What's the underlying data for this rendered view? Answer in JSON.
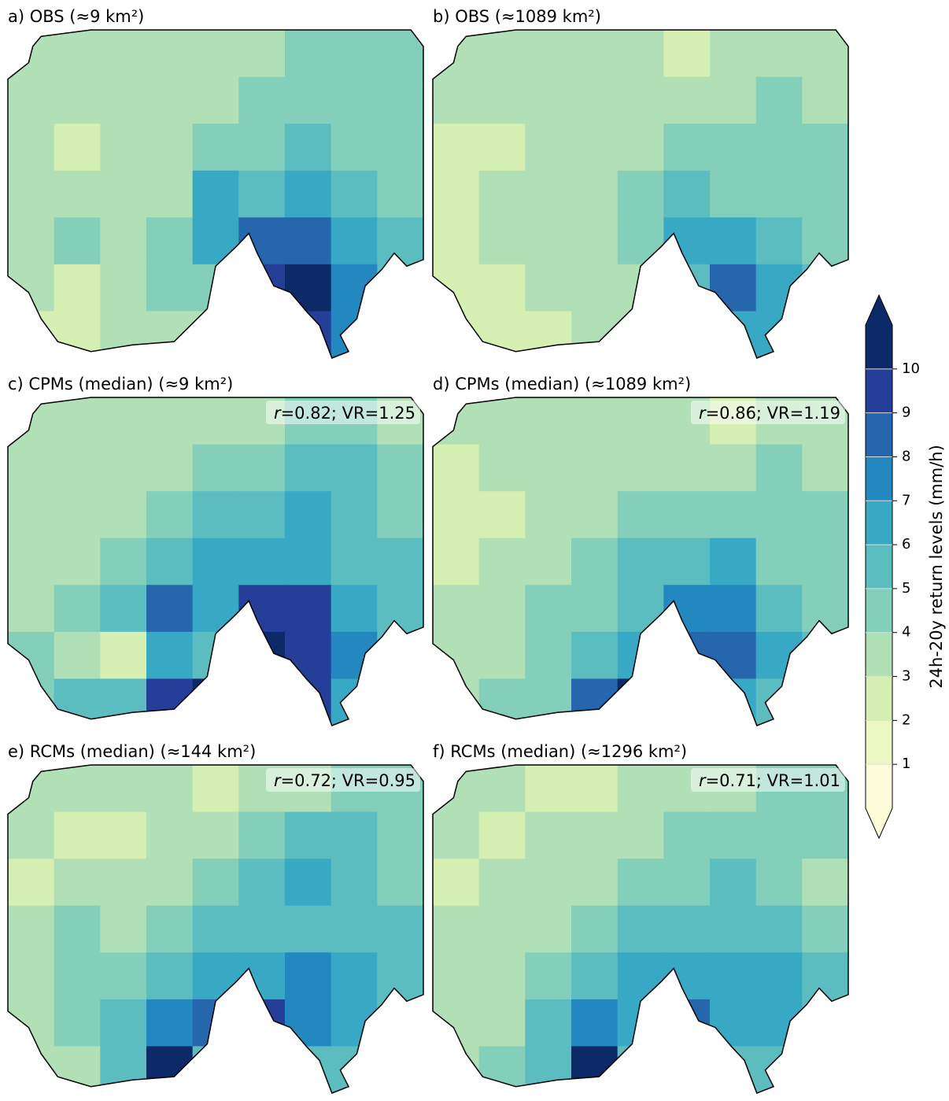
{
  "panels": [
    {
      "title": "a) OBS (≈9 km²)",
      "grid": [
        [
          3.5,
          3.5,
          3.5,
          3.5,
          3.5,
          3.5,
          4.5,
          4.5,
          4.5
        ],
        [
          3.5,
          3.5,
          3.5,
          3.5,
          3.5,
          4.5,
          4.5,
          4.5,
          4.5
        ],
        [
          3.5,
          2.5,
          3.5,
          3.5,
          4.5,
          4.5,
          5.5,
          4.5,
          4.5
        ],
        [
          3.5,
          3.5,
          3.5,
          3.5,
          6.5,
          5.5,
          6.5,
          5.5,
          4.5
        ],
        [
          3.5,
          4.5,
          3.5,
          4.5,
          6.5,
          8.5,
          8.5,
          6.5,
          5.5
        ],
        [
          3.5,
          2.5,
          3.5,
          4.5,
          4.5,
          9.5,
          10.5,
          7.5,
          5.5
        ],
        [
          2.5,
          2.5,
          3.5,
          3.5,
          3.5,
          4.5,
          9.5,
          7.5,
          5.5
        ]
      ]
    },
    {
      "title": "b) OBS (≈1089 km²)",
      "grid": [
        [
          3.5,
          3.5,
          3.5,
          3.5,
          3.5,
          2.5,
          3.5,
          3.5,
          3.5
        ],
        [
          3.5,
          3.5,
          3.5,
          3.5,
          3.5,
          3.5,
          3.5,
          4.5,
          3.5
        ],
        [
          2.5,
          2.5,
          3.5,
          3.5,
          3.5,
          4.5,
          4.5,
          4.5,
          4.5
        ],
        [
          2.5,
          3.5,
          3.5,
          3.5,
          4.5,
          5.5,
          4.5,
          4.5,
          4.5
        ],
        [
          2.5,
          3.5,
          3.5,
          3.5,
          4.5,
          6.5,
          6.5,
          5.5,
          4.5
        ],
        [
          2.5,
          2.5,
          3.5,
          3.5,
          3.5,
          5.5,
          8.5,
          6.5,
          5.5
        ],
        [
          2.5,
          2.5,
          2.5,
          3.5,
          3.5,
          4.5,
          6.5,
          6.5,
          5.5
        ]
      ]
    },
    {
      "title": "c) CPMs (median) (≈9 km²)",
      "stat_symbol": "r",
      "stat_text": "=0.82; VR=1.25",
      "grid": [
        [
          3.5,
          3.5,
          3.5,
          3.5,
          3.5,
          3.5,
          4.5,
          4.5,
          3.5
        ],
        [
          3.5,
          3.5,
          3.5,
          3.5,
          4.5,
          4.5,
          5.5,
          5.5,
          4.5
        ],
        [
          3.5,
          3.5,
          3.5,
          4.5,
          5.5,
          5.5,
          6.5,
          5.5,
          4.5
        ],
        [
          3.5,
          3.5,
          4.5,
          5.5,
          6.5,
          6.5,
          6.5,
          5.5,
          5.5
        ],
        [
          3.5,
          4.5,
          5.5,
          8.5,
          6.5,
          9.5,
          9.5,
          6.5,
          5.5
        ],
        [
          4.5,
          3.5,
          2.5,
          6.5,
          5.5,
          10.5,
          9.5,
          7.5,
          5.5
        ],
        [
          4.5,
          5.5,
          5.5,
          9.5,
          10.5,
          8.5,
          9.5,
          6.5,
          5.5
        ]
      ]
    },
    {
      "title": "d) CPMs (median) (≈1089 km²)",
      "stat_symbol": "r",
      "stat_text": "=0.86; VR=1.19",
      "grid": [
        [
          3.5,
          3.5,
          3.5,
          3.5,
          3.5,
          3.5,
          2.5,
          3.5,
          3.5
        ],
        [
          2.5,
          3.5,
          3.5,
          3.5,
          3.5,
          3.5,
          3.5,
          4.5,
          3.5
        ],
        [
          2.5,
          2.5,
          3.5,
          3.5,
          4.5,
          4.5,
          4.5,
          4.5,
          4.5
        ],
        [
          2.5,
          3.5,
          3.5,
          4.5,
          5.5,
          5.5,
          6.5,
          4.5,
          4.5
        ],
        [
          3.5,
          3.5,
          4.5,
          4.5,
          5.5,
          7.5,
          7.5,
          5.5,
          4.5
        ],
        [
          3.5,
          3.5,
          4.5,
          5.5,
          6.5,
          8.5,
          8.5,
          6.5,
          5.5
        ],
        [
          3.5,
          4.5,
          4.5,
          8.5,
          10.5,
          7.5,
          6.5,
          5.5,
          5.5
        ]
      ]
    },
    {
      "title": "e) RCMs (median) (≈144 km²)",
      "stat_symbol": "r",
      "stat_text": "=0.72; VR=0.95",
      "grid": [
        [
          3.5,
          3.5,
          3.5,
          3.5,
          2.5,
          3.5,
          3.5,
          4.5,
          4.5
        ],
        [
          3.5,
          2.5,
          2.5,
          3.5,
          3.5,
          4.5,
          5.5,
          5.5,
          4.5
        ],
        [
          2.5,
          3.5,
          3.5,
          3.5,
          4.5,
          5.5,
          6.5,
          5.5,
          4.5
        ],
        [
          3.5,
          4.5,
          3.5,
          4.5,
          5.5,
          5.5,
          5.5,
          5.5,
          5.5
        ],
        [
          3.5,
          4.5,
          4.5,
          5.5,
          6.5,
          6.5,
          7.5,
          6.5,
          5.5
        ],
        [
          3.5,
          4.5,
          5.5,
          7.5,
          8.5,
          9.5,
          7.5,
          6.5,
          5.5
        ],
        [
          3.5,
          3.5,
          5.5,
          10.5,
          5.5,
          5.5,
          5.5,
          5.5,
          5.5
        ]
      ]
    },
    {
      "title": "f) RCMs (median) (≈1296 km²)",
      "stat_symbol": "r",
      "stat_text": "=0.71; VR=1.01",
      "grid": [
        [
          3.5,
          3.5,
          2.5,
          2.5,
          3.5,
          3.5,
          3.5,
          4.5,
          4.5
        ],
        [
          3.5,
          2.5,
          3.5,
          3.5,
          3.5,
          4.5,
          4.5,
          4.5,
          4.5
        ],
        [
          2.5,
          3.5,
          3.5,
          3.5,
          4.5,
          4.5,
          5.5,
          4.5,
          3.5
        ],
        [
          3.5,
          3.5,
          3.5,
          4.5,
          5.5,
          5.5,
          5.5,
          5.5,
          4.5
        ],
        [
          3.5,
          3.5,
          4.5,
          5.5,
          6.5,
          6.5,
          6.5,
          6.5,
          5.5
        ],
        [
          3.5,
          3.5,
          5.5,
          7.5,
          6.5,
          8.5,
          6.5,
          6.5,
          5.5
        ],
        [
          3.5,
          4.5,
          5.5,
          10.5,
          5.5,
          5.5,
          5.5,
          5.5,
          5.5
        ]
      ]
    }
  ],
  "colorbar": {
    "label": "24h-20y return levels (mm/h)",
    "lim": [
      0,
      11
    ],
    "ticks": [
      1,
      2,
      3,
      4,
      5,
      6,
      7,
      8,
      9,
      10
    ],
    "colors": [
      "#fdfed9",
      "#edf8c5",
      "#d6efb3",
      "#b2e0b6",
      "#84cfba",
      "#5cbdc0",
      "#38a9c5",
      "#2388bf",
      "#2566ad",
      "#253f99",
      "#0c2a68"
    ]
  }
}
